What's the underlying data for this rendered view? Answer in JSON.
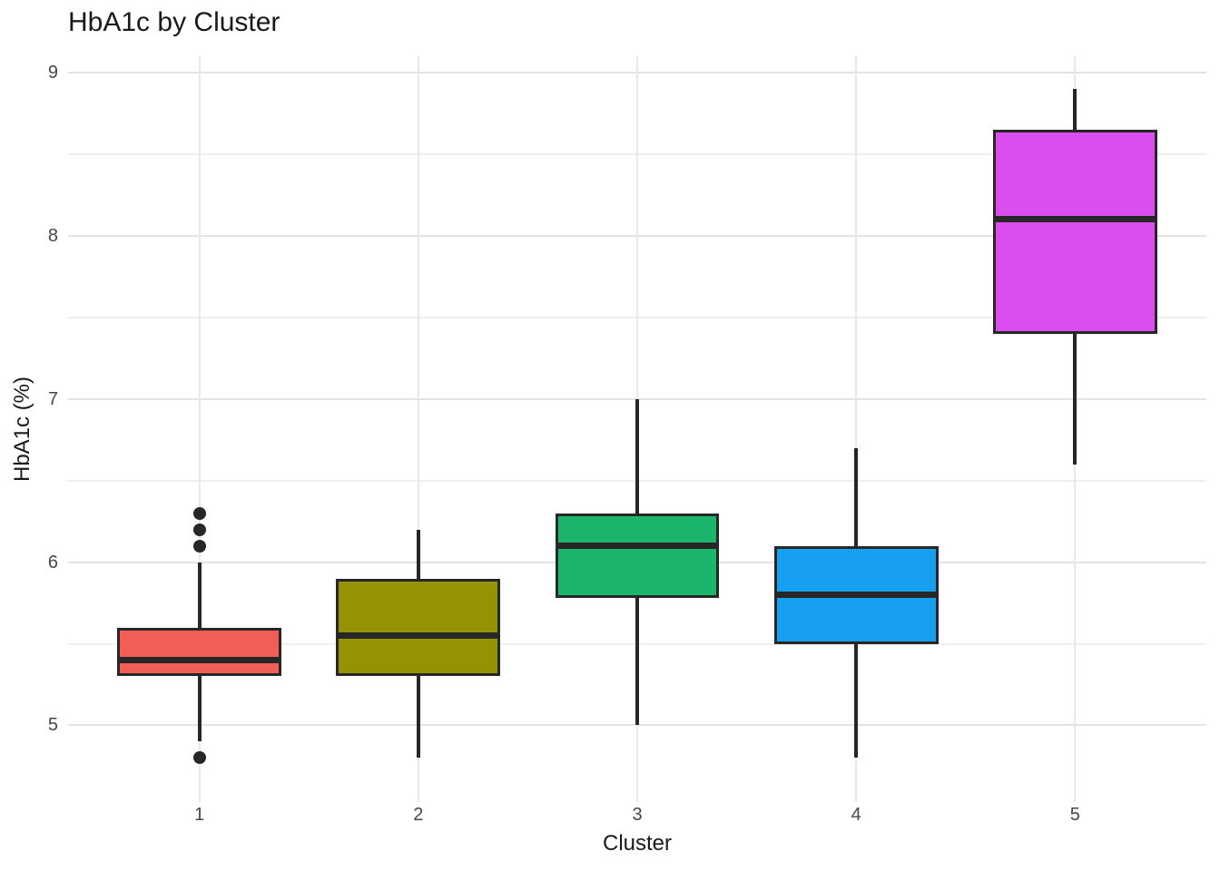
{
  "title": "HbA1c by Cluster",
  "colors": {
    "background": "#ffffff",
    "stroke": "#272727",
    "grid_major_h": "#e3e3e3",
    "grid_minor_h": "#efefef",
    "grid_major_v": "#e8e8e8",
    "tick_label": "#474747",
    "text": "#1a1a1a"
  },
  "chart_data": {
    "type": "boxplot",
    "title": "HbA1c by Cluster",
    "xlabel": "Cluster",
    "ylabel": "HbA1c (%)",
    "categories": [
      "1",
      "2",
      "3",
      "4",
      "5"
    ],
    "ylim": [
      4.53,
      9.1
    ],
    "y_major_ticks": [
      5,
      6,
      7,
      8,
      9
    ],
    "y_minor_ticks": [
      5.5,
      6.5,
      7.5,
      8.5
    ],
    "grid": "horizontal major+minor, vertical major at each category; no axis lines; white background",
    "legend_position": "none",
    "series": [
      {
        "cluster": "1",
        "fill": "#f25d58",
        "whisker_low": 4.9,
        "q1": 5.3,
        "median": 5.4,
        "q3": 5.6,
        "whisker_high": 6.0,
        "outliers": [
          6.3,
          6.2,
          6.1,
          4.8
        ]
      },
      {
        "cluster": "2",
        "fill": "#959304",
        "whisker_low": 4.8,
        "q1": 5.3,
        "median": 5.55,
        "q3": 5.9,
        "whisker_high": 6.2,
        "outliers": []
      },
      {
        "cluster": "3",
        "fill": "#1cb56c",
        "whisker_low": 5.0,
        "q1": 5.78,
        "median": 6.1,
        "q3": 6.3,
        "whisker_high": 7.0,
        "outliers": []
      },
      {
        "cluster": "4",
        "fill": "#18a0f0",
        "whisker_low": 4.8,
        "q1": 5.5,
        "median": 5.8,
        "q3": 6.1,
        "whisker_high": 6.7,
        "outliers": []
      },
      {
        "cluster": "5",
        "fill": "#db4dee",
        "whisker_low": 6.6,
        "q1": 7.4,
        "median": 8.1,
        "q3": 8.65,
        "whisker_high": 8.9,
        "outliers": []
      }
    ]
  }
}
